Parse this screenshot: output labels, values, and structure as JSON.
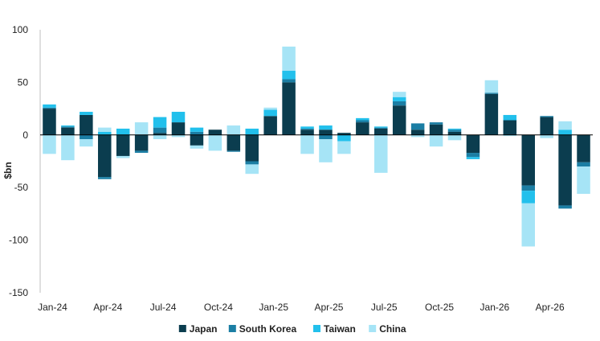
{
  "chart_data": {
    "type": "bar",
    "stacked": true,
    "ylabel": "$bn",
    "ylim": [
      -150,
      100
    ],
    "yticks": [
      100,
      50,
      0,
      -50,
      -100,
      -150
    ],
    "grid": false,
    "legend_position": "bottom",
    "x_tick_labels": [
      "Jan-24",
      "Apr-24",
      "Jul-24",
      "Oct-24",
      "Jan-25",
      "Apr-25",
      "Jul-25",
      "Oct-25",
      "Jan-26",
      "Apr-26"
    ],
    "categories": [
      "Jan-24",
      "Feb-24",
      "Mar-24",
      "Apr-24",
      "May-24",
      "Jun-24",
      "Jul-24",
      "Aug-24",
      "Sep-24",
      "Oct-24",
      "Nov-24",
      "Dec-24",
      "Jan-25",
      "Feb-25",
      "Mar-25",
      "Apr-25",
      "May-25",
      "Jun-25",
      "Jul-25",
      "Aug-25",
      "Sep-25",
      "Oct-25",
      "Nov-25",
      "Dec-25",
      "Jan-26",
      "Feb-26",
      "Mar-26",
      "Apr-26",
      "May-26",
      "Jun-26"
    ],
    "series": [
      {
        "name": "Japan",
        "color": "#0b3d4f",
        "values": [
          25,
          7,
          19,
          -40,
          -20,
          -15,
          2,
          12,
          -10,
          5,
          -15,
          -25,
          18,
          50,
          5,
          5,
          2,
          12,
          6,
          28,
          5,
          10,
          3,
          -17,
          39,
          14,
          -48,
          17,
          -67,
          -26
        ]
      },
      {
        "name": "South Korea",
        "color": "#1b7ea4",
        "values": [
          1,
          1,
          -4,
          -2,
          0,
          -2,
          5,
          0,
          3,
          0,
          -1,
          -3,
          0,
          3,
          1,
          -4,
          0,
          2,
          1,
          4,
          6,
          2,
          2,
          -4,
          1,
          0,
          -5,
          1,
          -3,
          -4
        ]
      },
      {
        "name": "Taiwan",
        "color": "#22c0ec",
        "values": [
          3,
          1,
          3,
          3,
          6,
          0,
          10,
          10,
          4,
          0,
          0,
          6,
          6,
          8,
          2,
          4,
          -6,
          2,
          1,
          4,
          0,
          0,
          1,
          -2,
          0,
          5,
          -12,
          0,
          5,
          0
        ]
      },
      {
        "name": "China",
        "color": "#a6e4f6",
        "values": [
          -18,
          -24,
          -7,
          4,
          -2,
          12,
          -4,
          -2,
          -3,
          -15,
          9,
          -9,
          2,
          23,
          -18,
          -22,
          -12,
          0,
          -36,
          5,
          -2,
          -11,
          -5,
          0,
          12,
          -1,
          -41,
          -3,
          8,
          -26
        ]
      }
    ]
  }
}
